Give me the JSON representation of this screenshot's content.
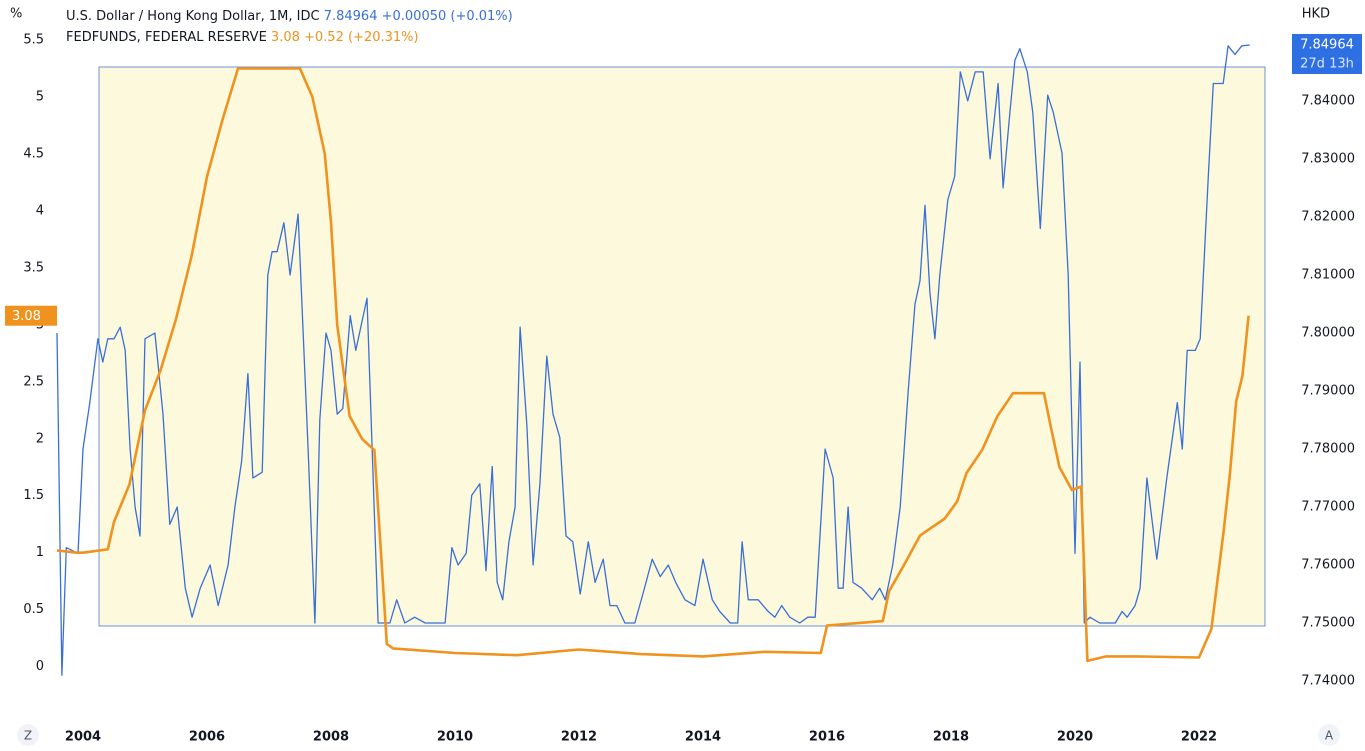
{
  "chart_data": {
    "type": "line",
    "y_label": "%",
    "y2_label": "HKD",
    "xlim": [
      2003,
      2023.5
    ],
    "xticks": [
      2004,
      2006,
      2008,
      2010,
      2012,
      2014,
      2016,
      2018,
      2020,
      2022
    ],
    "ylim": [
      -0.6,
      5.5
    ],
    "yticks": [
      0,
      0.5,
      1,
      1.5,
      2,
      2.5,
      3,
      3.5,
      4,
      4.5,
      5,
      5.5
    ],
    "y2lim": [
      7.7307,
      7.8505
    ],
    "y2ticks": [
      {
        "value": 7.74,
        "label": "7.74000"
      },
      {
        "value": 7.75,
        "label": "7.75000"
      },
      {
        "value": 7.76,
        "label": "7.76000"
      },
      {
        "value": 7.77,
        "label": "7.77000"
      },
      {
        "value": 7.78,
        "label": "7.78000"
      },
      {
        "value": 7.79,
        "label": "7.79000"
      },
      {
        "value": 7.8,
        "label": "7.80000"
      },
      {
        "value": 7.81,
        "label": "7.81000"
      },
      {
        "value": 7.82,
        "label": "7.82000"
      },
      {
        "value": 7.83,
        "label": "7.83000"
      },
      {
        "value": 7.84,
        "label": "7.84000"
      }
    ],
    "grid": false,
    "countdown": "27d 13h",
    "buttons": [
      "Z",
      "A"
    ],
    "series": [
      {
        "name": "U.S. Dollar / Hong Kong Dollar, 1M, IDC",
        "last_label": "7.84964",
        "change": "+0.00050 (+0.01%)",
        "color": "#3a6fd8",
        "axis": "y2",
        "x": [
          2003.58,
          2003.66,
          2003.73,
          2003.92,
          2004.0,
          2004.11,
          2004.24,
          2004.32,
          2004.4,
          2004.5,
          2004.6,
          2004.68,
          2004.76,
          2004.84,
          2004.92,
          2005.0,
          2005.16,
          2005.29,
          2005.4,
          2005.52,
          2005.65,
          2005.76,
          2005.89,
          2006.05,
          2006.18,
          2006.34,
          2006.45,
          2006.56,
          2006.66,
          2006.74,
          2006.89,
          2006.98,
          2007.05,
          2007.13,
          2007.24,
          2007.34,
          2007.47,
          2007.63,
          2007.74,
          2007.82,
          2007.92,
          2008.0,
          2008.1,
          2008.19,
          2008.31,
          2008.4,
          2008.58,
          2008.76,
          2008.95,
          2009.06,
          2009.19,
          2009.35,
          2009.52,
          2009.84,
          2009.95,
          2010.05,
          2010.18,
          2010.27,
          2010.4,
          2010.5,
          2010.6,
          2010.68,
          2010.77,
          2010.87,
          2010.97,
          2011.05,
          2011.16,
          2011.26,
          2011.37,
          2011.48,
          2011.58,
          2011.69,
          2011.79,
          2011.9,
          2012.02,
          2012.15,
          2012.26,
          2012.39,
          2012.5,
          2012.61,
          2012.74,
          2012.9,
          2013.03,
          2013.18,
          2013.31,
          2013.44,
          2013.56,
          2013.71,
          2013.87,
          2014.0,
          2014.15,
          2014.27,
          2014.44,
          2014.56,
          2014.63,
          2014.73,
          2014.89,
          2015.05,
          2015.16,
          2015.27,
          2015.4,
          2015.56,
          2015.69,
          2015.81,
          2015.97,
          2016.1,
          2016.18,
          2016.26,
          2016.34,
          2016.42,
          2016.56,
          2016.73,
          2016.85,
          2016.94,
          2017.06,
          2017.18,
          2017.31,
          2017.42,
          2017.5,
          2017.58,
          2017.66,
          2017.74,
          2017.82,
          2017.95,
          2018.06,
          2018.15,
          2018.27,
          2018.39,
          2018.52,
          2018.63,
          2018.76,
          2018.84,
          2018.95,
          2019.03,
          2019.11,
          2019.23,
          2019.32,
          2019.44,
          2019.56,
          2019.65,
          2019.79,
          2019.89,
          2020.0,
          2020.08,
          2020.15,
          2020.24,
          2020.4,
          2020.65,
          2020.76,
          2020.84,
          2020.97,
          2021.05,
          2021.16,
          2021.32,
          2021.48,
          2021.65,
          2021.73,
          2021.81,
          2021.94,
          2022.02,
          2022.15,
          2022.23,
          2022.39,
          2022.47,
          2022.58,
          2022.69,
          2022.82
        ],
        "values": [
          7.8,
          7.741,
          7.763,
          7.762,
          7.78,
          7.788,
          7.799,
          7.795,
          7.799,
          7.799,
          7.801,
          7.797,
          7.78,
          7.77,
          7.765,
          7.799,
          7.8,
          7.786,
          7.767,
          7.77,
          7.756,
          7.751,
          7.756,
          7.76,
          7.753,
          7.76,
          7.77,
          7.778,
          7.793,
          7.775,
          7.776,
          7.81,
          7.814,
          7.814,
          7.819,
          7.81,
          7.8205,
          7.78,
          7.75,
          7.785,
          7.8,
          7.797,
          7.786,
          7.787,
          7.803,
          7.797,
          7.806,
          7.75,
          7.75,
          7.754,
          7.75,
          7.751,
          7.75,
          7.75,
          7.763,
          7.76,
          7.762,
          7.772,
          7.774,
          7.759,
          7.777,
          7.757,
          7.754,
          7.764,
          7.77,
          7.801,
          7.784,
          7.76,
          7.774,
          7.796,
          7.786,
          7.782,
          7.765,
          7.764,
          7.755,
          7.764,
          7.757,
          7.761,
          7.753,
          7.753,
          7.75,
          7.75,
          7.755,
          7.761,
          7.758,
          7.76,
          7.757,
          7.754,
          7.753,
          7.761,
          7.754,
          7.752,
          7.75,
          7.75,
          7.764,
          7.754,
          7.754,
          7.752,
          7.751,
          7.753,
          7.751,
          7.75,
          7.751,
          7.751,
          7.78,
          7.775,
          7.756,
          7.756,
          7.77,
          7.757,
          7.756,
          7.754,
          7.756,
          7.754,
          7.76,
          7.77,
          7.79,
          7.805,
          7.809,
          7.822,
          7.807,
          7.799,
          7.81,
          7.823,
          7.827,
          7.845,
          7.84,
          7.845,
          7.845,
          7.83,
          7.843,
          7.825,
          7.838,
          7.847,
          7.849,
          7.845,
          7.838,
          7.818,
          7.841,
          7.838,
          7.831,
          7.81,
          7.762,
          7.795,
          7.75,
          7.751,
          7.75,
          7.75,
          7.752,
          7.751,
          7.753,
          7.756,
          7.775,
          7.761,
          7.775,
          7.788,
          7.78,
          7.797,
          7.797,
          7.799,
          7.827,
          7.843,
          7.843,
          7.8495,
          7.848,
          7.8495,
          7.84964
        ]
      },
      {
        "name": "FEDFUNDS, FEDERAL RESERVE",
        "last_label": "3.08",
        "change": "+0.52 (+20.31%)",
        "color": "#f0921e",
        "axis": "y",
        "x": [
          2003.58,
          2003.9,
          2004.0,
          2004.4,
          2004.5,
          2004.75,
          2005.0,
          2005.25,
          2005.5,
          2005.75,
          2006.0,
          2006.25,
          2006.5,
          2007.0,
          2007.5,
          2007.7,
          2007.9,
          2008.0,
          2008.1,
          2008.3,
          2008.5,
          2008.7,
          2008.9,
          2009.0,
          2010.0,
          2011.0,
          2012.0,
          2013.0,
          2014.0,
          2015.0,
          2015.9,
          2016.0,
          2016.9,
          2017.0,
          2017.25,
          2017.5,
          2017.9,
          2018.1,
          2018.25,
          2018.5,
          2018.75,
          2019.0,
          2019.5,
          2019.6,
          2019.75,
          2019.95,
          2020.1,
          2020.2,
          2020.5,
          2021.0,
          2022.0,
          2022.2,
          2022.4,
          2022.5,
          2022.6,
          2022.7,
          2022.8
        ],
        "values": [
          1.02,
          1.0,
          1.0,
          1.03,
          1.27,
          1.6,
          2.25,
          2.6,
          3.05,
          3.6,
          4.3,
          4.8,
          5.25,
          5.25,
          5.25,
          5.0,
          4.5,
          3.9,
          3.0,
          2.2,
          2.0,
          1.9,
          0.2,
          0.16,
          0.12,
          0.1,
          0.15,
          0.11,
          0.09,
          0.13,
          0.12,
          0.36,
          0.4,
          0.66,
          0.9,
          1.15,
          1.3,
          1.45,
          1.7,
          1.9,
          2.2,
          2.4,
          2.4,
          2.13,
          1.75,
          1.55,
          1.58,
          0.05,
          0.09,
          0.09,
          0.08,
          0.33,
          1.2,
          1.7,
          2.33,
          2.55,
          3.08
        ]
      }
    ]
  }
}
